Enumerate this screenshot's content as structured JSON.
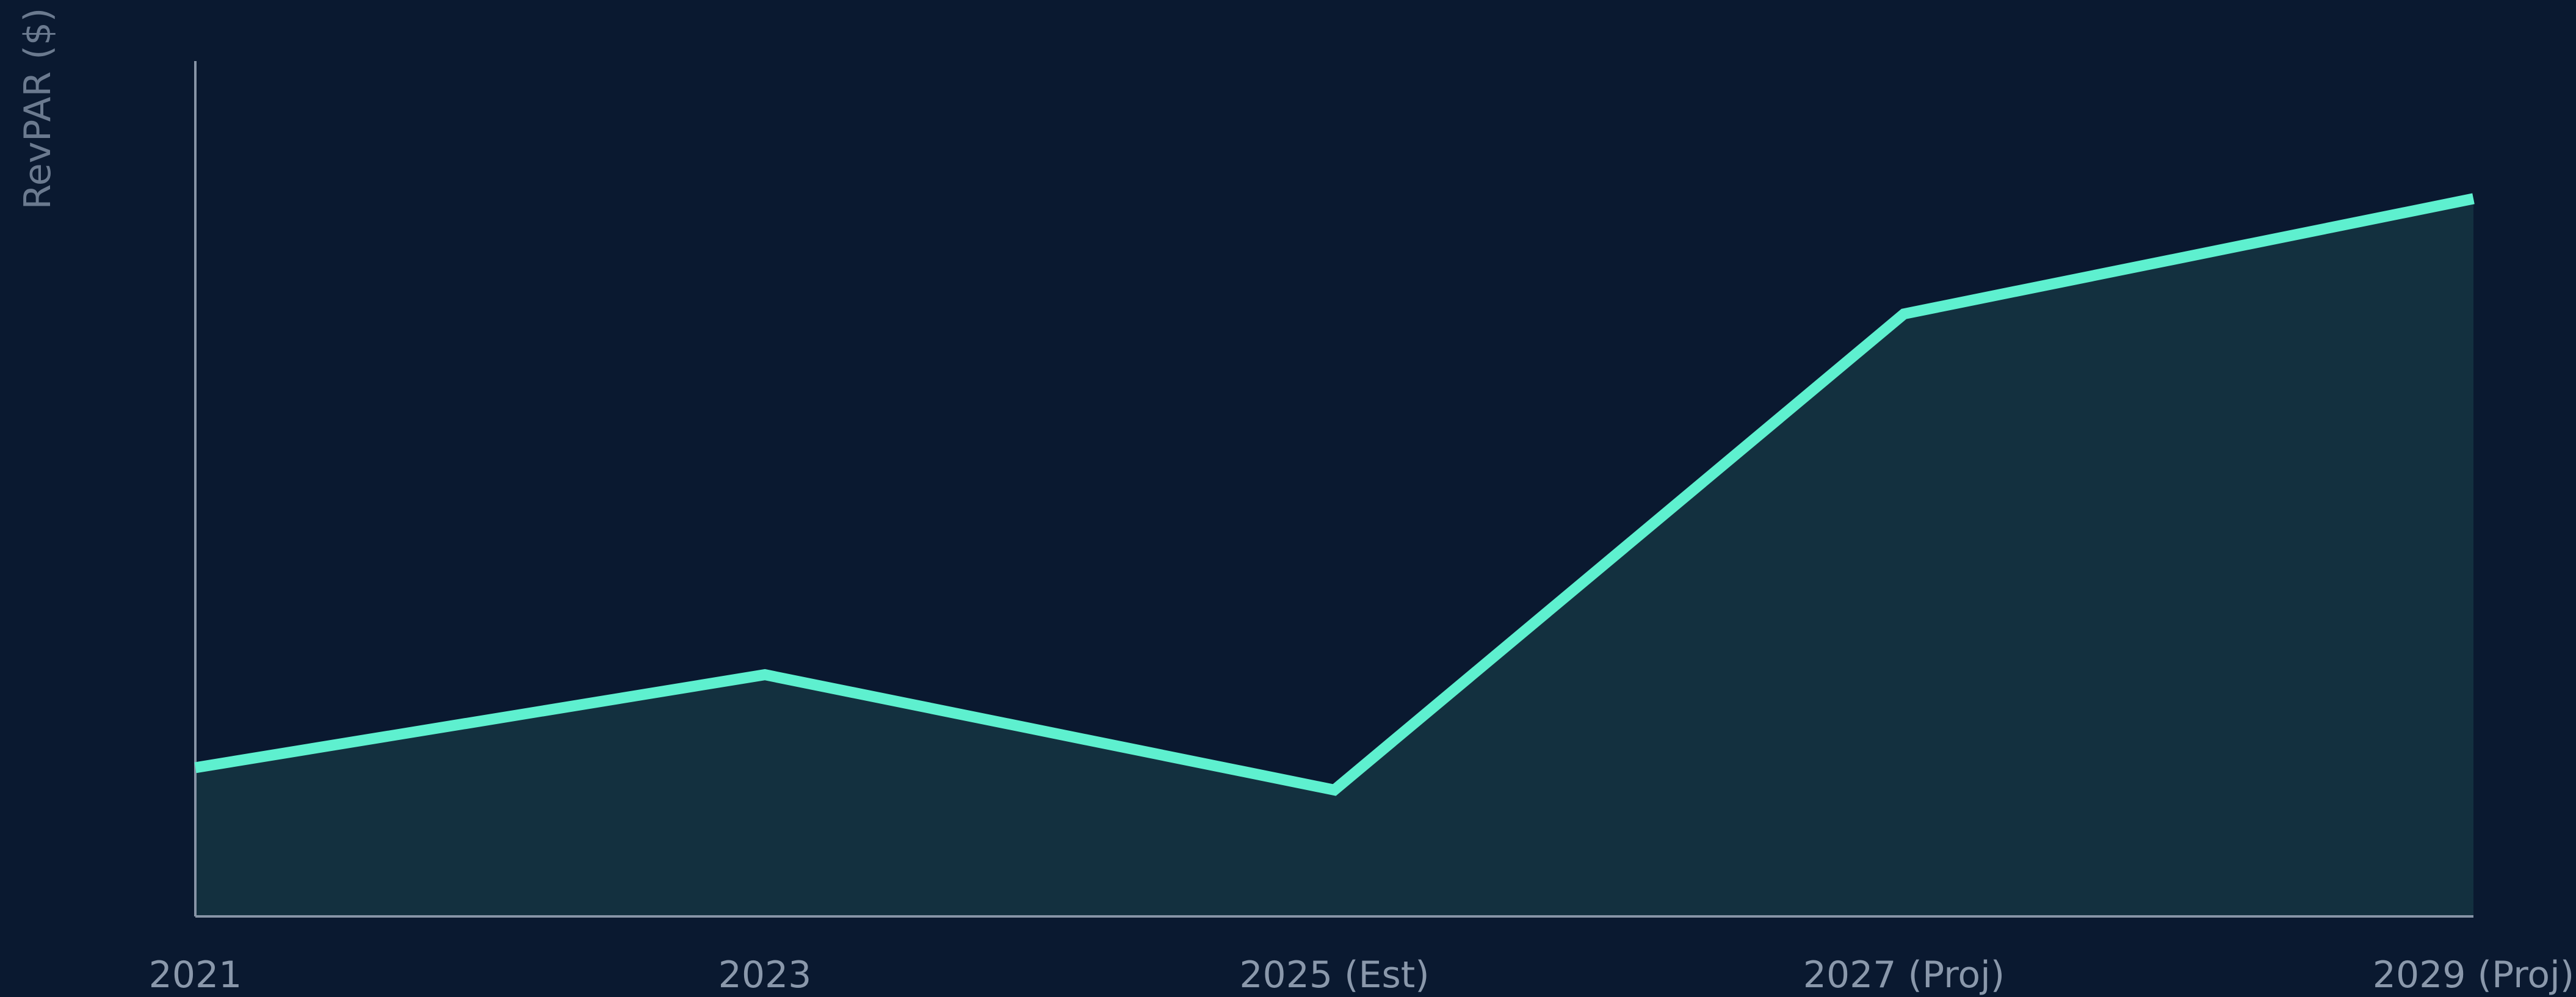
{
  "chart_data": {
    "type": "area",
    "title": "",
    "xlabel": "",
    "ylabel": "RevPAR ($)",
    "categories": [
      "2021",
      "2023",
      "2025 (Est)",
      "2027 (Proj)",
      "2029 (Proj)"
    ],
    "values": [
      140,
      165,
      134,
      262,
      293
    ],
    "ylim": [
      100,
      330
    ],
    "grid": false,
    "legend": "none",
    "colors": {
      "background": "#0a1930",
      "line": "#5ef0cf",
      "fill": "#13303f",
      "axis": "#8794a6",
      "text": "#8a98ab"
    }
  }
}
